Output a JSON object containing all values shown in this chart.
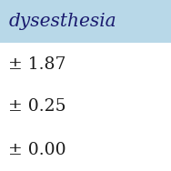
{
  "header_text": "dysesthesia",
  "header_bg": "#b8d8e8",
  "header_text_color": "#1a1a6e",
  "row_values": [
    "± 1.87",
    "± 0.25",
    "± 0.00"
  ],
  "row_bg": "#ffffff",
  "row_text_color": "#1a1a1a",
  "font_size": 13.5,
  "header_font_size": 14.5,
  "fig_width": 1.88,
  "fig_height": 1.88,
  "dpi": 100
}
